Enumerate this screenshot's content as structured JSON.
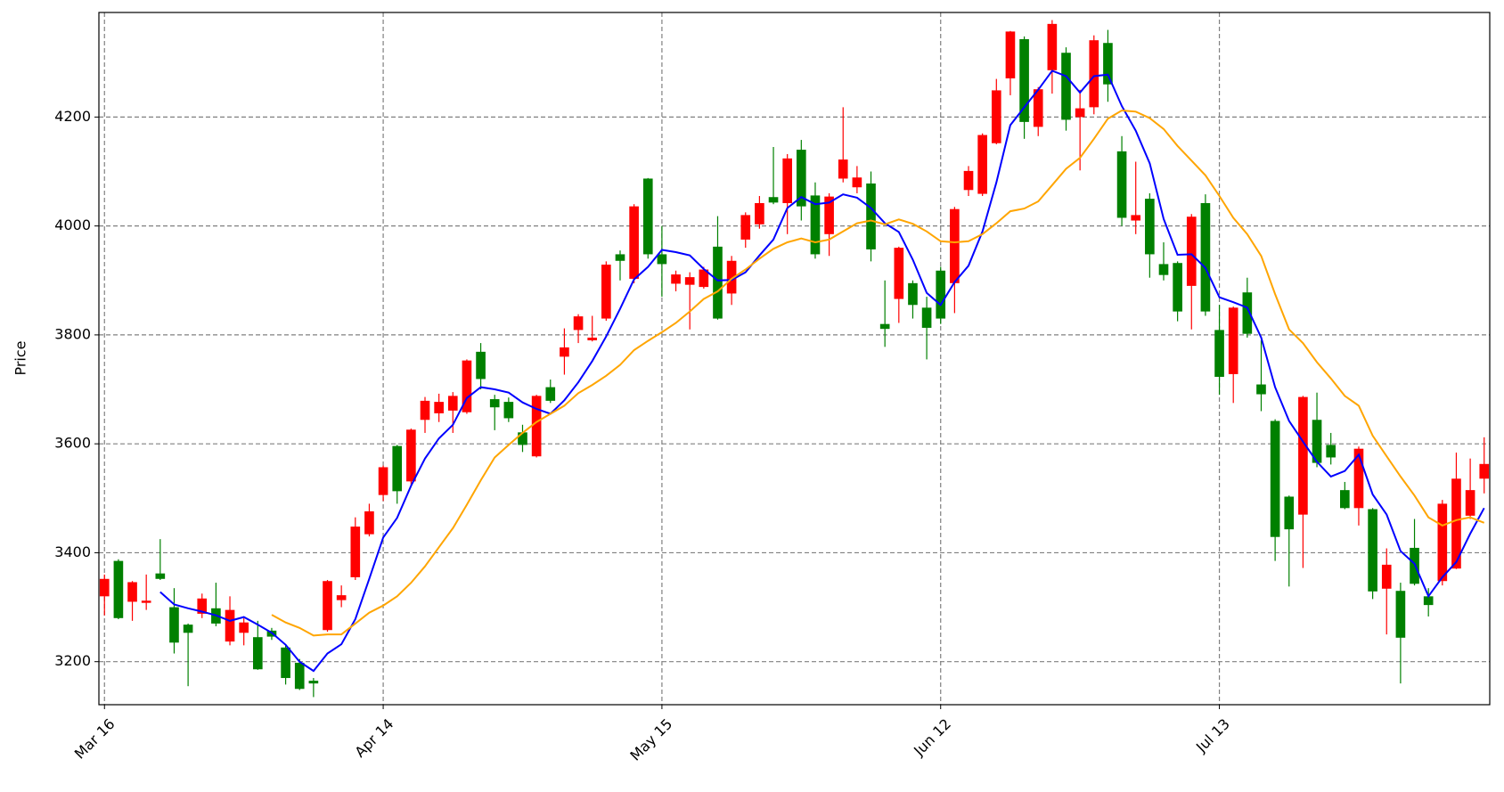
{
  "chart_data": {
    "type": "candlestick",
    "y_label": "Price",
    "categories": [
      "Mar 16",
      null,
      null,
      null,
      null,
      null,
      null,
      null,
      null,
      null,
      null,
      null,
      null,
      null,
      null,
      null,
      null,
      null,
      null,
      null,
      "Apr 14",
      null,
      null,
      null,
      null,
      null,
      null,
      null,
      null,
      null,
      null,
      null,
      null,
      null,
      null,
      null,
      null,
      null,
      null,
      null,
      "May 15",
      null,
      null,
      null,
      null,
      null,
      null,
      null,
      null,
      null,
      null,
      null,
      null,
      null,
      null,
      null,
      null,
      null,
      null,
      null,
      "Jun 12",
      null,
      null,
      null,
      null,
      null,
      null,
      null,
      null,
      null,
      null,
      null,
      null,
      null,
      null,
      null,
      null,
      null,
      null,
      null,
      "Jul 13",
      null,
      null,
      null,
      null,
      null,
      null,
      null,
      null,
      null,
      null,
      null,
      null,
      null,
      null,
      null,
      null,
      null,
      null,
      null
    ],
    "open": [
      3320,
      3385,
      3310,
      3308,
      3362,
      3300,
      3268,
      3288,
      3298,
      3237,
      3253,
      3245,
      3257,
      3226,
      3198,
      3165,
      3258,
      3313,
      3355,
      3434,
      3506,
      3596,
      3531,
      3644,
      3656,
      3661,
      3658,
      3769,
      3682,
      3677,
      3621,
      3577,
      3704,
      3760,
      3809,
      3790,
      3830,
      3948,
      3903,
      4087,
      3948,
      3894,
      3892,
      3888,
      3962,
      3876,
      3975,
      4003,
      4053,
      4042,
      4140,
      4056,
      3985,
      4087,
      4071,
      4078,
      3820,
      3866,
      3895,
      3850,
      3918,
      3895,
      4066,
      4059,
      4152,
      4271,
      4343,
      4182,
      4286,
      4318,
      4200,
      4218,
      4336,
      4137,
      4010,
      4050,
      3930,
      3932,
      3890,
      4042,
      3809,
      3728,
      3878,
      3709,
      3642,
      3503,
      3470,
      3644,
      3598,
      3515,
      3482,
      3480,
      3334,
      3330,
      3409,
      3320,
      3348,
      3371,
      3468,
      3536
    ],
    "high": [
      3360,
      3388,
      3348,
      3360,
      3425,
      3335,
      3270,
      3325,
      3345,
      3320,
      3280,
      3275,
      3262,
      3232,
      3205,
      3170,
      3350,
      3340,
      3465,
      3490,
      3560,
      3598,
      3628,
      3686,
      3692,
      3695,
      3755,
      3785,
      3690,
      3685,
      3635,
      3690,
      3718,
      3812,
      3838,
      3835,
      3935,
      3955,
      4040,
      4088,
      4000,
      3918,
      3915,
      3925,
      4018,
      3945,
      4025,
      4055,
      4145,
      4132,
      4158,
      4080,
      4060,
      4218,
      4110,
      4100,
      3900,
      3962,
      3900,
      3870,
      3925,
      4035,
      4110,
      4170,
      4270,
      4358,
      4348,
      4255,
      4378,
      4328,
      4250,
      4350,
      4360,
      4165,
      4118,
      4060,
      3970,
      3935,
      4022,
      4058,
      3855,
      3852,
      3905,
      3790,
      3645,
      3505,
      3688,
      3694,
      3620,
      3530,
      3595,
      3482,
      3408,
      3345,
      3462,
      3335,
      3497,
      3584,
      3573,
      3612
    ],
    "low": [
      3285,
      3278,
      3275,
      3295,
      3350,
      3215,
      3155,
      3280,
      3265,
      3230,
      3230,
      3185,
      3240,
      3158,
      3148,
      3135,
      3255,
      3300,
      3350,
      3430,
      3495,
      3490,
      3525,
      3620,
      3640,
      3620,
      3655,
      3700,
      3625,
      3640,
      3585,
      3575,
      3675,
      3727,
      3785,
      3788,
      3826,
      3900,
      3895,
      3940,
      3870,
      3880,
      3810,
      3885,
      3828,
      3855,
      3960,
      3995,
      4040,
      3985,
      4010,
      3940,
      3945,
      4080,
      4060,
      3935,
      3778,
      3822,
      3830,
      3755,
      3820,
      3840,
      4055,
      4055,
      4150,
      4240,
      4160,
      4165,
      4243,
      4175,
      4102,
      4205,
      4228,
      4000,
      3985,
      3905,
      3900,
      3825,
      3810,
      3835,
      3690,
      3675,
      3795,
      3660,
      3385,
      3338,
      3372,
      3557,
      3562,
      3480,
      3450,
      3315,
      3250,
      3160,
      3340,
      3283,
      3340,
      3370,
      3462,
      3509
    ],
    "close": [
      3352,
      3280,
      3346,
      3312,
      3352,
      3235,
      3253,
      3316,
      3270,
      3295,
      3272,
      3186,
      3246,
      3170,
      3150,
      3160,
      3348,
      3322,
      3448,
      3476,
      3557,
      3513,
      3626,
      3679,
      3677,
      3688,
      3753,
      3719,
      3667,
      3647,
      3598,
      3688,
      3679,
      3777,
      3834,
      3795,
      3929,
      3936,
      4036,
      3948,
      3930,
      3911,
      3906,
      3920,
      3830,
      3936,
      4020,
      4042,
      4043,
      4124,
      4036,
      3948,
      4054,
      4122,
      4089,
      3957,
      3811,
      3960,
      3855,
      3813,
      3830,
      4031,
      4101,
      4167,
      4249,
      4357,
      4191,
      4251,
      4371,
      4195,
      4216,
      4341,
      4260,
      4015,
      4020,
      3948,
      3910,
      3843,
      4017,
      3843,
      3723,
      3850,
      3802,
      3691,
      3429,
      3443,
      3686,
      3565,
      3575,
      3482,
      3591,
      3329,
      3378,
      3244,
      3343,
      3304,
      3490,
      3536,
      3515,
      3563
    ],
    "up_color": "#ff0000",
    "down_color": "#008000",
    "series": [
      {
        "color": "#0000ff",
        "values": [
          null,
          null,
          null,
          null,
          3328,
          3305,
          3298,
          3292,
          3285,
          3275,
          3282,
          3268,
          3253,
          3231,
          3200,
          3183,
          3215,
          3232,
          3278,
          3352,
          3428,
          3464,
          3523,
          3573,
          3610,
          3635,
          3684,
          3704,
          3700,
          3694,
          3676,
          3664,
          3655,
          3680,
          3713,
          3752,
          3797,
          3848,
          3902,
          3925,
          3956,
          3952,
          3946,
          3921,
          3900,
          3901,
          3915,
          3946,
          3975,
          4033,
          4053,
          4040,
          4043,
          4058,
          4052,
          4033,
          4005,
          3989,
          3938,
          3877,
          3855,
          3897,
          3927,
          3990,
          4080,
          4185,
          4218,
          4250,
          4285,
          4275,
          4245,
          4275,
          4278,
          4220,
          4175,
          4115,
          4013,
          3947,
          3948,
          3923,
          3869,
          3860,
          3850,
          3795,
          3704,
          3642,
          3604,
          3567,
          3540,
          3550,
          3580,
          3507,
          3470,
          3403,
          3380,
          3320,
          3355,
          3383,
          3435,
          3482
        ]
      },
      {
        "color": "#ffa500",
        "values": [
          null,
          null,
          null,
          null,
          null,
          null,
          null,
          null,
          null,
          null,
          null,
          null,
          3286,
          3272,
          3262,
          3248,
          3250,
          3250,
          3270,
          3290,
          3303,
          3320,
          3345,
          3375,
          3410,
          3445,
          3488,
          3533,
          3575,
          3598,
          3620,
          3640,
          3655,
          3670,
          3693,
          3708,
          3725,
          3745,
          3772,
          3789,
          3805,
          3822,
          3843,
          3866,
          3880,
          3903,
          3920,
          3940,
          3958,
          3970,
          3977,
          3970,
          3975,
          3990,
          4005,
          4010,
          4003,
          4012,
          4004,
          3990,
          3972,
          3970,
          3972,
          3985,
          4005,
          4027,
          4032,
          4045,
          4075,
          4105,
          4125,
          4160,
          4197,
          4212,
          4210,
          4198,
          4178,
          4147,
          4120,
          4093,
          4055,
          4015,
          3985,
          3945,
          3875,
          3810,
          3785,
          3750,
          3720,
          3688,
          3670,
          3615,
          3577,
          3540,
          3505,
          3465,
          3450,
          3460,
          3465,
          3455
        ]
      }
    ],
    "ylim": [
      3121,
      4392
    ],
    "yticks": [
      3200,
      3400,
      3600,
      3800,
      4000,
      4200
    ],
    "grid": true
  }
}
